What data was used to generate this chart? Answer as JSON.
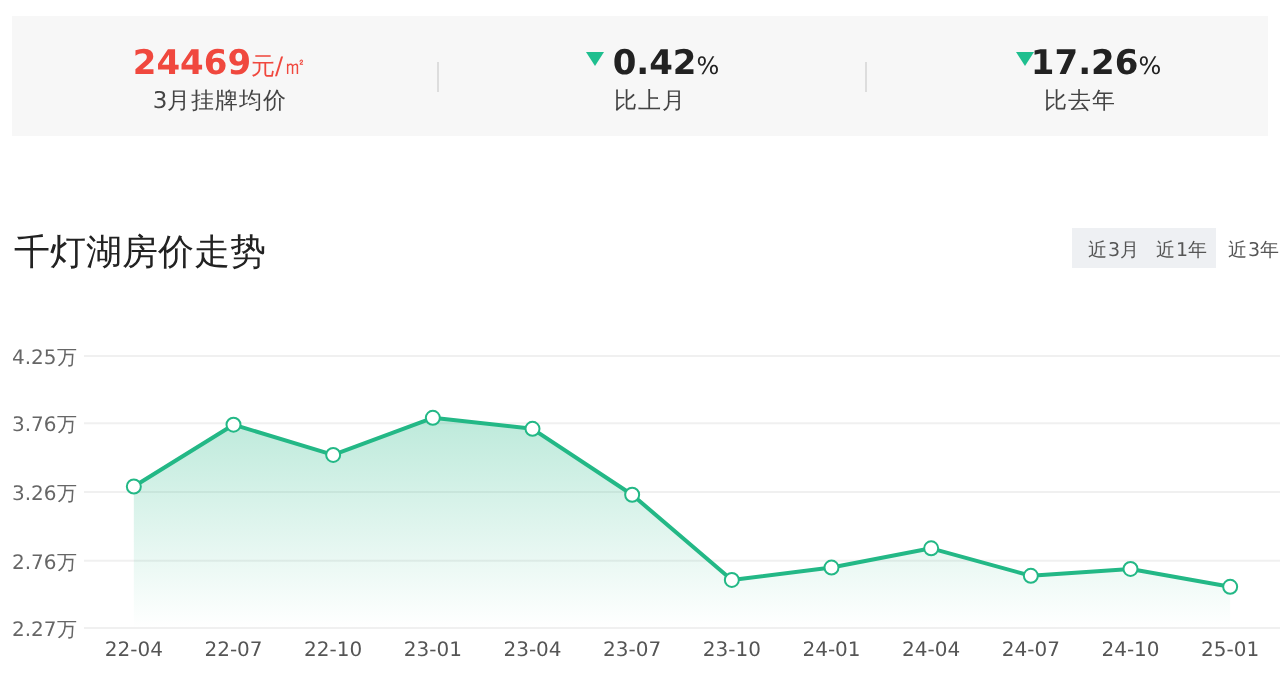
{
  "chart_data": {
    "type": "area",
    "title": "千灯湖房价走势",
    "annotations": [
      "24469元/㎡",
      "3月挂牌均价",
      "0.42%",
      "比上月",
      "17.26%",
      "比去年",
      "近3月",
      "近1年",
      "近3年"
    ],
    "categories": [
      "22-04",
      "22-07",
      "22-10",
      "23-01",
      "23-04",
      "23-07",
      "23-10",
      "24-01",
      "24-04",
      "24-07",
      "24-10",
      "25-01"
    ],
    "series": [
      {
        "color": "#23b886",
        "values": [
          3.3,
          3.75,
          3.53,
          3.8,
          3.72,
          3.24,
          2.62,
          2.71,
          2.85,
          2.65,
          2.7,
          2.57
        ]
      }
    ],
    "ylim": [
      2.27,
      4.25
    ],
    "yticks": [
      {
        "value": 2.27,
        "label": "2.27万"
      },
      {
        "value": 2.76,
        "label": "2.76万"
      },
      {
        "value": 3.26,
        "label": "3.26万"
      },
      {
        "value": 3.76,
        "label": "3.76万"
      },
      {
        "value": 4.25,
        "label": "4.25万"
      }
    ],
    "grid": "y",
    "marker": "circle",
    "line_style": "solid"
  }
}
